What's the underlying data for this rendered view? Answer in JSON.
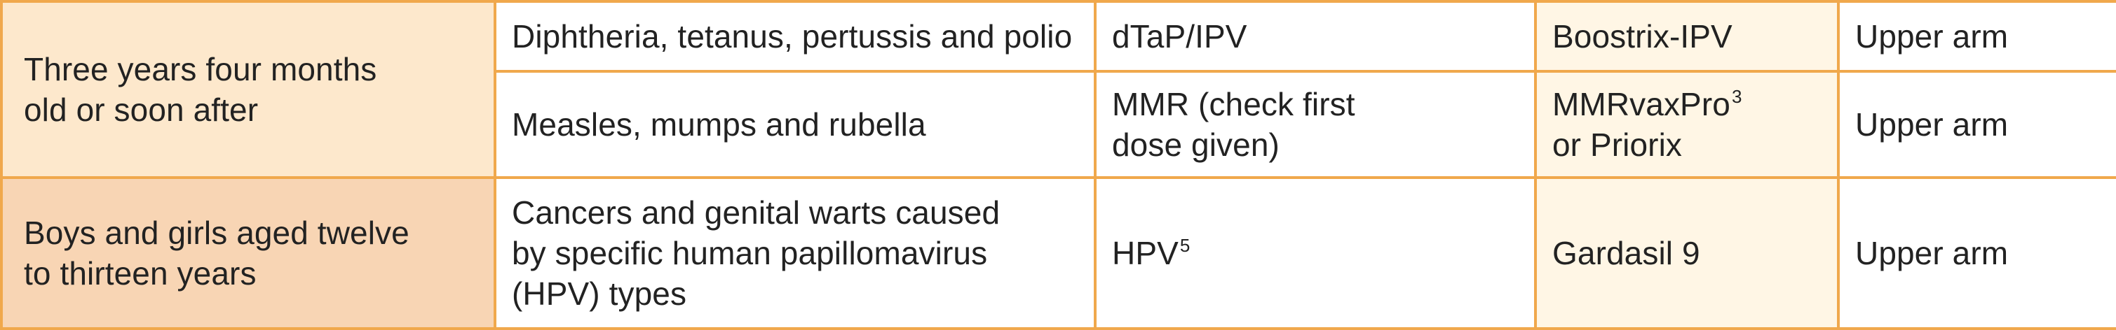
{
  "colors": {
    "border": "#f0a84c",
    "age_group_1_bg": "#fde8cc",
    "age_group_2_bg": "#f8d5b4",
    "brand_highlight_bg": "#fff6e5",
    "cell_bg": "#ffffff",
    "text": "#222222"
  },
  "rows": [
    {
      "age_lines": [
        "Three years four months",
        "old or soon after"
      ],
      "items": [
        {
          "disease_lines": [
            "Diphtheria, tetanus, pertussis and polio"
          ],
          "vaccine_lines": [
            "dTaP/IPV"
          ],
          "vaccine_sup": "",
          "brand_lines": [
            "Boostrix-IPV"
          ],
          "brand_sup": "",
          "site": "Upper arm"
        },
        {
          "disease_lines": [
            "Measles, mumps and rubella"
          ],
          "vaccine_lines": [
            "MMR (check first",
            "dose given)"
          ],
          "vaccine_sup": "",
          "brand_lines": [
            "MMRvaxPro",
            "or Priorix"
          ],
          "brand_sup": "3",
          "site": "Upper arm"
        }
      ]
    },
    {
      "age_lines": [
        "Boys and girls aged twelve",
        "to thirteen years"
      ],
      "items": [
        {
          "disease_lines": [
            "Cancers and genital warts caused",
            "by specific human papillomavirus",
            "(HPV) types"
          ],
          "vaccine_lines": [
            "HPV"
          ],
          "vaccine_sup": "5",
          "brand_lines": [
            "Gardasil 9"
          ],
          "brand_sup": "",
          "site": "Upper arm"
        }
      ]
    }
  ]
}
